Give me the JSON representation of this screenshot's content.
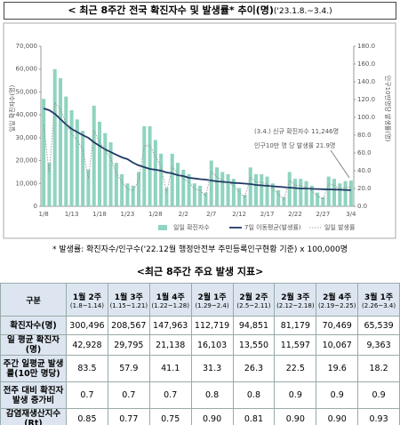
{
  "header": {
    "title": "< 최근 8주간 전국 확진자수 및 발생률* 추이(명)",
    "subtitle": "('23.1.8.~3.4.)"
  },
  "chart_data": {
    "type": "bar",
    "categories": [
      "1/8",
      null,
      null,
      null,
      null,
      "1/13",
      null,
      null,
      null,
      null,
      "1/18",
      null,
      null,
      null,
      null,
      "1/23",
      null,
      null,
      null,
      null,
      "1/28",
      null,
      null,
      null,
      null,
      "2/2",
      null,
      null,
      null,
      null,
      "2/7",
      null,
      null,
      null,
      null,
      "2/12",
      null,
      null,
      null,
      null,
      "2/17",
      null,
      null,
      null,
      null,
      "2/22",
      null,
      null,
      null,
      null,
      "2/27",
      null,
      null,
      null,
      null,
      "3/4"
    ],
    "series": [
      {
        "name": "일일 확진자수",
        "type": "bar",
        "color": "#8fd3c0",
        "values": [
          47000,
          19000,
          60000,
          56000,
          48000,
          42000,
          38000,
          33000,
          16000,
          44000,
          37000,
          32000,
          28000,
          19000,
          14000,
          10000,
          9000,
          15000,
          35000,
          35000,
          29000,
          23000,
          8000,
          23000,
          19000,
          16000,
          14000,
          10000,
          9000,
          6000,
          20000,
          17000,
          15000,
          14000,
          12000,
          8000,
          5000,
          17000,
          14000,
          14000,
          13000,
          10000,
          7000,
          4000,
          15000,
          12000,
          12000,
          11000,
          9000,
          6000,
          4000,
          13000,
          12000,
          10000,
          11000,
          11246
        ]
      },
      {
        "name": "7일 이동평균(발생률)",
        "type": "line",
        "axis": "y2",
        "color": "#1f3864",
        "values": [
          110,
          108,
          104,
          98,
          92,
          87,
          83.5,
          80,
          77,
          72,
          68,
          64,
          61,
          57.9,
          55,
          53,
          49,
          46,
          44,
          42,
          41.1,
          40,
          38,
          37,
          35,
          34,
          32,
          31.3,
          30.5,
          30,
          29,
          28,
          27.5,
          27,
          26.3,
          26,
          25.5,
          25,
          24,
          23.5,
          23,
          22.5,
          22,
          21.5,
          21,
          20.5,
          20,
          20,
          19.6,
          19.4,
          19.2,
          19,
          18.8,
          18.6,
          18.4,
          18.2
        ]
      },
      {
        "name": "일일 발생률",
        "type": "dotted",
        "axis": "y2",
        "color": "#8c8c8c",
        "values": [
          91.4,
          37.0,
          116.7,
          109.0,
          93.4,
          81.7,
          73.9,
          64.2,
          31.1,
          85.6,
          72.0,
          62.3,
          54.5,
          37.0,
          27.2,
          19.5,
          17.5,
          29.2,
          68.1,
          68.1,
          56.4,
          44.7,
          15.6,
          44.7,
          37.0,
          31.1,
          27.2,
          19.5,
          17.5,
          11.7,
          38.9,
          33.1,
          29.2,
          27.2,
          23.3,
          15.6,
          9.7,
          33.1,
          27.2,
          27.2,
          25.3,
          19.5,
          13.6,
          7.8,
          29.2,
          23.3,
          23.3,
          21.4,
          17.5,
          11.7,
          7.8,
          25.3,
          23.3,
          19.5,
          21.4,
          21.9
        ]
      }
    ],
    "ylim": [
      0,
      70000
    ],
    "yticks": [
      0,
      {
        "value": 10000,
        "label": "10,000"
      },
      {
        "value": 20000,
        "label": "20,000"
      },
      {
        "value": 30000,
        "label": "30,000"
      },
      {
        "value": 40000,
        "label": "40,000"
      },
      {
        "value": 50000,
        "label": "50,000"
      },
      {
        "value": 60000,
        "label": "60,000"
      },
      {
        "value": 70000,
        "label": "70,000"
      }
    ],
    "y2lim": [
      0,
      180
    ],
    "y2ticks": [
      {
        "value": 0,
        "label": "0.0"
      },
      {
        "value": 20,
        "label": "20.0"
      },
      {
        "value": 40,
        "label": "40.0"
      },
      {
        "value": 60,
        "label": "60.0"
      },
      {
        "value": 80,
        "label": "80.0"
      },
      {
        "value": 100,
        "label": "100.0"
      },
      {
        "value": 120,
        "label": "120.0"
      },
      {
        "value": 140,
        "label": "140.0"
      },
      {
        "value": 160,
        "label": "160.0"
      },
      {
        "value": 180,
        "label": "180.0"
      }
    ],
    "ylabel": "일일 확진자수(명)",
    "y2label": "인구10만명당 발생률(명)",
    "annotations": [
      "(3.4.) 신규 확진자수 11,246명",
      "인구10만 명 당 발생률 21.9명"
    ],
    "grid": false
  },
  "footnote": "* 발생률: 확진자수/인구수('22.12월 행정안전부 주민등록인구현황 기준) x 100,000명",
  "table": {
    "title": "<최근 8주간 주요 발생 지표>",
    "corner": "구분",
    "columns": [
      {
        "week": "1월 2주",
        "range": "(1.8~1.14)"
      },
      {
        "week": "1월 3주",
        "range": "(1.15~1.21)"
      },
      {
        "week": "1월 4주",
        "range": "(1.22~1.28)"
      },
      {
        "week": "2월 1주",
        "range": "(1.29~2.4)"
      },
      {
        "week": "2월 2주",
        "range": "(2.5~2.11)"
      },
      {
        "week": "2월 3주",
        "range": "(2.12~2.18)"
      },
      {
        "week": "2월 4주",
        "range": "(2.19~2.25)"
      },
      {
        "week": "3월 1주",
        "range": "(2.26~3.4)"
      }
    ],
    "rows": [
      {
        "label": "확진자수(명)",
        "cells": [
          "300,496",
          "208,567",
          "147,963",
          "112,719",
          "94,851",
          "81,179",
          "70,469",
          "65,539"
        ]
      },
      {
        "label": "일 평균 확진자(명)",
        "cells": [
          "42,928",
          "29,795",
          "21,138",
          "16,103",
          "13,550",
          "11,597",
          "10,067",
          "9,363"
        ]
      },
      {
        "label": "주간 일평균 발생률(10만 명당)",
        "cells": [
          "83.5",
          "57.9",
          "41.1",
          "31.3",
          "26.3",
          "22.5",
          "19.6",
          "18.2"
        ]
      },
      {
        "label": "전주 대비 확진자 발생 증가비",
        "cells": [
          "0.7",
          "0.7",
          "0.7",
          "0.8",
          "0.8",
          "0.9",
          "0.9",
          "0.9"
        ]
      },
      {
        "label": "감염재생산지수(Rt)",
        "cells": [
          "0.85",
          "0.77",
          "0.75",
          "0.90",
          "0.81",
          "0.90",
          "0.90",
          "0.93"
        ]
      }
    ]
  }
}
